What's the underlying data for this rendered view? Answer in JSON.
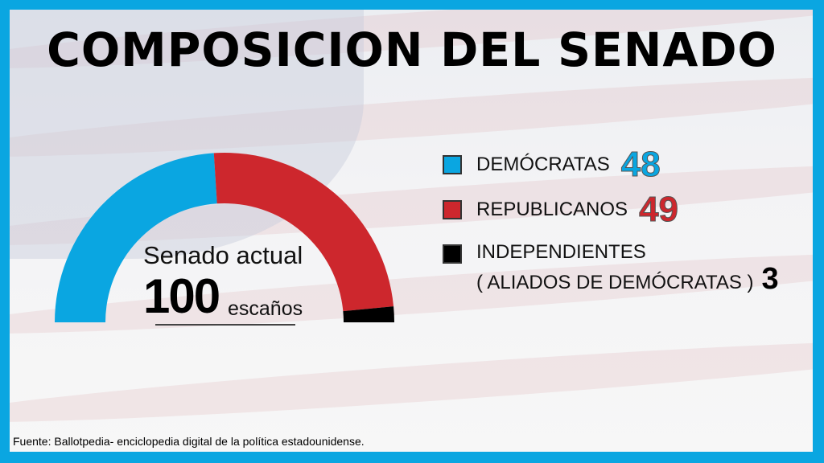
{
  "title": "COMPOSICION DEL SENADO",
  "chart_data": {
    "type": "pie",
    "subtype": "half-donut",
    "center_label": "Senado actual",
    "total": 100,
    "total_unit": "escaños",
    "series": [
      {
        "name": "DEMÓCRATAS",
        "value": 48,
        "color": "#0aa6e1"
      },
      {
        "name": "REPUBLICANOS",
        "value": 49,
        "color": "#cd272d"
      },
      {
        "name": "INDEPENDIENTES",
        "name_line2": "( ALIADOS DE DEMÓCRATAS )",
        "value": 3,
        "color": "#000000"
      }
    ],
    "legend": "right"
  },
  "source": "Fuente: Ballotpedia- enciclopedia digital de la política estadounidense."
}
